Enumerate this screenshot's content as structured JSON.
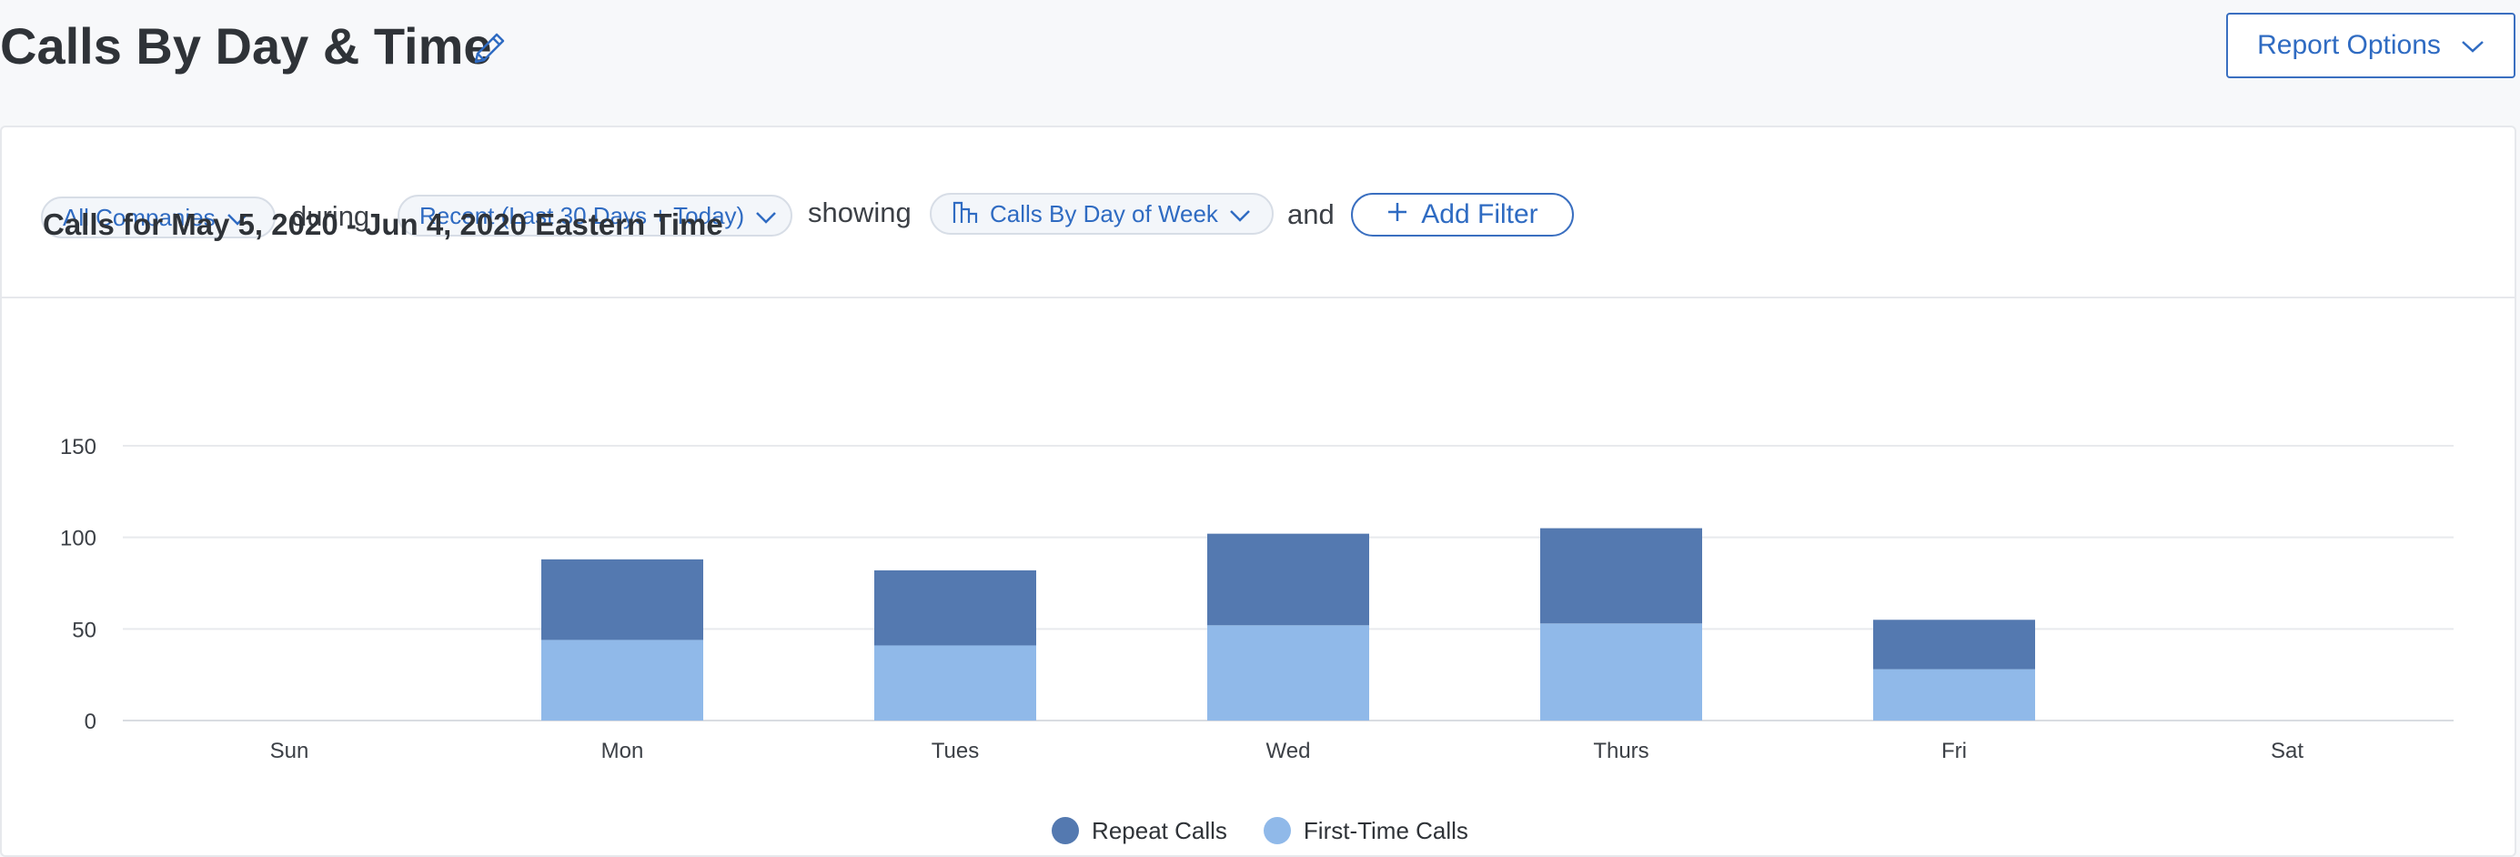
{
  "header": {
    "title": "Calls By Day & Time",
    "report_options_label": "Report Options"
  },
  "filters": {
    "company": "All Companies",
    "connector_during": "during",
    "range": "Recent (Last 30 Days + Today)",
    "connector_showing": "showing",
    "view": "Calls By Day of Week",
    "connector_and": "and",
    "add_filter_label": "Add Filter"
  },
  "colors": {
    "accent": "#2f6bc2",
    "repeat": "#5479b0",
    "first_time": "#90b9e9"
  },
  "chart_data": {
    "type": "bar",
    "stacked": true,
    "title": "Calls for May 5, 2020 - Jun 4, 2020 Eastern Time",
    "categories": [
      "Sun",
      "Mon",
      "Tues",
      "Wed",
      "Thurs",
      "Fri",
      "Sat"
    ],
    "series": [
      {
        "name": "First-Time Calls",
        "color": "#90b9e9",
        "values": [
          0,
          44,
          41,
          52,
          53,
          28,
          0
        ]
      },
      {
        "name": "Repeat Calls",
        "color": "#5479b0",
        "values": [
          0,
          44,
          41,
          50,
          52,
          27,
          0
        ]
      }
    ],
    "yticks": [
      0,
      50,
      100,
      150
    ],
    "ylim": [
      0,
      150
    ],
    "grid": true,
    "legend_position": "bottom-center",
    "legend": [
      "Repeat Calls",
      "First-Time Calls"
    ]
  }
}
